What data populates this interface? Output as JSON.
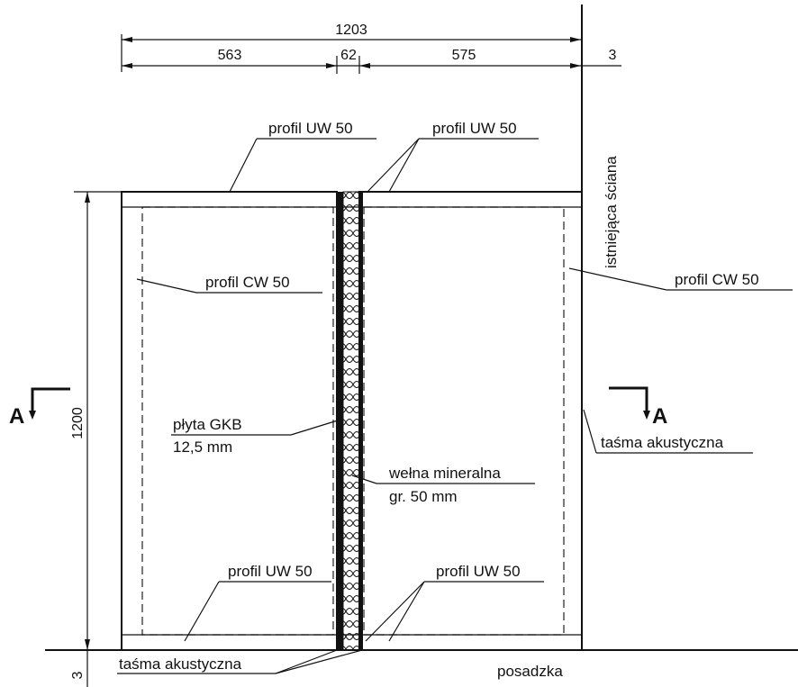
{
  "dimensions": {
    "overall_width": "1203",
    "left_span": "563",
    "middle_span": "62",
    "right_span": "575",
    "gap": "3",
    "height": "1200",
    "bottom_gap": "3"
  },
  "labels": {
    "top_uw_left": "profil UW 50",
    "top_uw_right": "profil UW 50",
    "existing_wall": "istniejąca ściana",
    "cw_left": "profil CW 50",
    "cw_right": "profil CW 50",
    "section_letter_left": "A",
    "section_letter_right": "A",
    "board_line1": "płyta GKB",
    "board_line2": "12,5 mm",
    "acoustic_tape_right": "taśma akustyczna",
    "wool_line1": "wełna mineralna",
    "wool_line2": "gr. 50 mm",
    "bottom_uw_left": "profil UW 50",
    "bottom_uw_right": "profil UW 50",
    "acoustic_tape_bottom": "taśma akustyczna",
    "floor": "posadzka"
  }
}
